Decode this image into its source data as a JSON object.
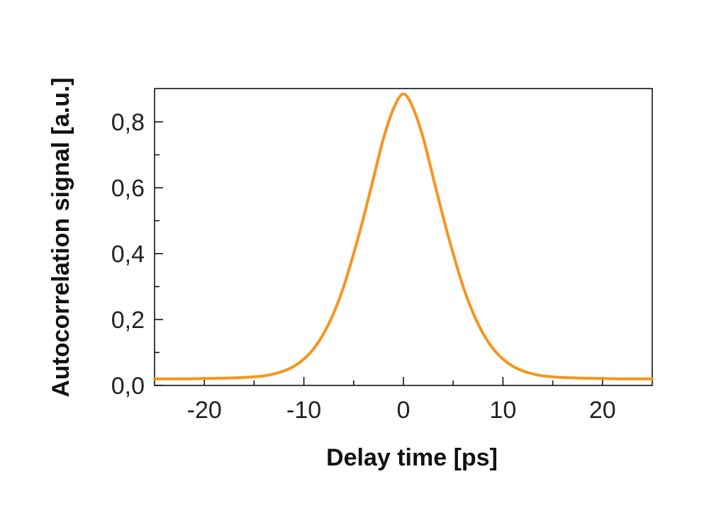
{
  "chart_data": {
    "type": "line",
    "title": "",
    "xlabel": "Delay time [ps]",
    "ylabel": "Autocorrelation signal [a.u.]",
    "xlim": [
      -25,
      25
    ],
    "ylim": [
      0,
      0.9
    ],
    "x_ticks": [
      -20,
      -10,
      0,
      10,
      20
    ],
    "x_tick_labels": [
      "-20",
      "-10",
      "0",
      "10",
      "20"
    ],
    "x_minor_ticks": [
      -15,
      -5,
      5,
      15
    ],
    "y_ticks": [
      0,
      0.2,
      0.4,
      0.6,
      0.8
    ],
    "y_tick_labels": [
      "0,0",
      "0,2",
      "0,4",
      "0,6",
      "0,8"
    ],
    "y_minor_ticks": [
      0.1,
      0.3,
      0.5,
      0.7
    ],
    "grid": false,
    "series": [
      {
        "color": "#f7941d",
        "x": [
          -25,
          -22,
          -20,
          -18,
          -16,
          -15,
          -14,
          -13,
          -12,
          -11,
          -10,
          -9,
          -8,
          -7,
          -6,
          -5,
          -4,
          -3,
          -2,
          -1,
          0,
          1,
          2,
          3,
          4,
          5,
          6,
          7,
          8,
          9,
          10,
          11,
          12,
          13,
          14,
          15,
          16,
          18,
          20,
          22,
          25
        ],
        "y": [
          0.02,
          0.02,
          0.021,
          0.022,
          0.024,
          0.026,
          0.029,
          0.035,
          0.044,
          0.058,
          0.08,
          0.112,
          0.158,
          0.22,
          0.3,
          0.4,
          0.51,
          0.63,
          0.75,
          0.84,
          0.885,
          0.84,
          0.75,
          0.63,
          0.51,
          0.4,
          0.3,
          0.22,
          0.158,
          0.112,
          0.08,
          0.058,
          0.044,
          0.035,
          0.029,
          0.026,
          0.024,
          0.022,
          0.021,
          0.02,
          0.02
        ]
      }
    ]
  }
}
